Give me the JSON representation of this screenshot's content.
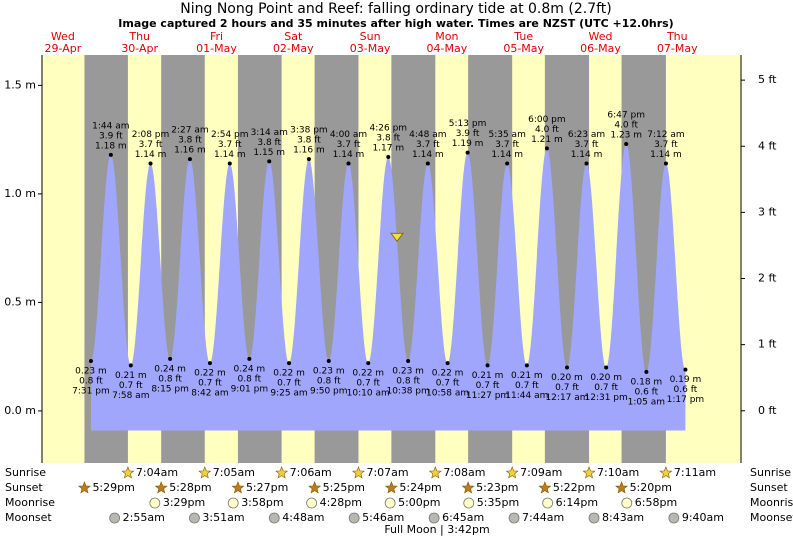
{
  "chart_data": {
    "type": "area",
    "title": "Ning Nong Point and Reef: falling  ordinary tide at 0.8m (2.7ft)",
    "subtitle": "Image captured 2 hours and 35 minutes after high water. Times are NZST (UTC +12.0hrs)",
    "current": 0.8,
    "ylim": [
      -0.24,
      1.64
    ],
    "yticks": [
      {
        "value": 0,
        "label": "0.0 m"
      },
      {
        "value": 0.5,
        "label": "0.5 m"
      },
      {
        "value": 1,
        "label": "1.0 m"
      },
      {
        "value": 1.5,
        "label": "1.5 m"
      }
    ],
    "y2lim": [
      -0.79,
      5.38
    ],
    "y2ticks": [
      {
        "value": 0,
        "label": "0 ft"
      },
      {
        "value": 1,
        "label": "1 ft"
      },
      {
        "value": 2,
        "label": "2 ft"
      },
      {
        "value": 3,
        "label": "3 ft"
      },
      {
        "value": 4,
        "label": "4 ft"
      },
      {
        "value": 5,
        "label": "5 ft"
      }
    ],
    "color": "#9fa6fb",
    "row_labels": {
      "sunrise": "Sunrise",
      "sunset": "Sunset",
      "moonrise": "Moonrise",
      "moonset": "Moonset"
    },
    "annotation": "Full Moon | 3:42pm",
    "days": [
      {
        "weekday": "Wed",
        "date": "29-Apr",
        "sunrise": null,
        "sunset": "5:29pm",
        "moonrise": null,
        "moonset": null,
        "tides": [
          {
            "time": "7:31 pm",
            "value": 0.23,
            "label": "0.23 m",
            "ft": "0.8 ft"
          }
        ]
      },
      {
        "weekday": "Thu",
        "date": "30-Apr",
        "sunrise": "7:04am",
        "sunset": "5:28pm",
        "moonrise": "3:29pm",
        "moonset": "2:55am",
        "tides": [
          {
            "time": "1:44 am",
            "value": 1.18,
            "label": "1.18 m",
            "ft": "3.9 ft"
          },
          {
            "time": "7:58 am",
            "value": 0.21,
            "label": "0.21 m",
            "ft": "0.7 ft"
          },
          {
            "time": "2:08 pm",
            "value": 1.14,
            "label": "1.14 m",
            "ft": "3.7 ft"
          },
          {
            "time": "8:15 pm",
            "value": 0.24,
            "label": "0.24 m",
            "ft": "0.8 ft"
          }
        ]
      },
      {
        "weekday": "Fri",
        "date": "01-May",
        "sunrise": "7:05am",
        "sunset": "5:27pm",
        "moonrise": "3:58pm",
        "moonset": "3:51am",
        "tides": [
          {
            "time": "2:27 am",
            "value": 1.16,
            "label": "1.16 m",
            "ft": "3.8 ft"
          },
          {
            "time": "8:42 am",
            "value": 0.22,
            "label": "0.22 m",
            "ft": "0.7 ft"
          },
          {
            "time": "2:54 pm",
            "value": 1.14,
            "label": "1.14 m",
            "ft": "3.7 ft"
          },
          {
            "time": "9:01 pm",
            "value": 0.24,
            "label": "0.24 m",
            "ft": "0.8 ft"
          }
        ]
      },
      {
        "weekday": "Sat",
        "date": "02-May",
        "sunrise": "7:06am",
        "sunset": "5:25pm",
        "moonrise": "4:28pm",
        "moonset": "4:48am",
        "tides": [
          {
            "time": "3:14 am",
            "value": 1.15,
            "label": "1.15 m",
            "ft": "3.8 ft"
          },
          {
            "time": "9:25 am",
            "value": 0.22,
            "label": "0.22 m",
            "ft": "0.7 ft"
          },
          {
            "time": "3:38 pm",
            "value": 1.16,
            "label": "1.16 m",
            "ft": "3.8 ft"
          },
          {
            "time": "9:50 pm",
            "value": 0.23,
            "label": "0.23 m",
            "ft": "0.8 ft"
          }
        ]
      },
      {
        "weekday": "Sun",
        "date": "03-May",
        "sunrise": "7:07am",
        "sunset": "5:24pm",
        "moonrise": "5:00pm",
        "moonset": "5:46am",
        "tides": [
          {
            "time": "4:00 am",
            "value": 1.14,
            "label": "1.14 m",
            "ft": "3.7 ft"
          },
          {
            "time": "10:10 am",
            "value": 0.22,
            "label": "0.22 m",
            "ft": "0.7 ft"
          },
          {
            "time": "4:26 pm",
            "value": 1.17,
            "label": "1.17 m",
            "ft": "3.8 ft"
          },
          {
            "time": "10:38 pm",
            "value": 0.23,
            "label": "0.23 m",
            "ft": "0.8 ft"
          }
        ]
      },
      {
        "weekday": "Mon",
        "date": "04-May",
        "sunrise": "7:08am",
        "sunset": "5:23pm",
        "moonrise": "5:35pm",
        "moonset": "6:45am",
        "tides": [
          {
            "time": "4:48 am",
            "value": 1.14,
            "label": "1.14 m",
            "ft": "3.7 ft"
          },
          {
            "time": "10:58 am",
            "value": 0.22,
            "label": "0.22 m",
            "ft": "0.7 ft"
          },
          {
            "time": "5:13 pm",
            "value": 1.19,
            "label": "1.19 m",
            "ft": "3.9 ft"
          },
          {
            "time": "11:27 pm",
            "value": 0.21,
            "label": "0.21 m",
            "ft": "0.7 ft"
          }
        ]
      },
      {
        "weekday": "Tue",
        "date": "05-May",
        "sunrise": "7:09am",
        "sunset": "5:22pm",
        "moonrise": "6:14pm",
        "moonset": "7:44am",
        "tides": [
          {
            "time": "5:35 am",
            "value": 1.14,
            "label": "1.14 m",
            "ft": "3.7 ft"
          },
          {
            "time": "11:44 am",
            "value": 0.21,
            "label": "0.21 m",
            "ft": "0.7 ft"
          },
          {
            "time": "6:00 pm",
            "value": 1.21,
            "label": "1.21 m",
            "ft": "4.0 ft"
          }
        ]
      },
      {
        "weekday": "Wed",
        "date": "06-May",
        "sunrise": "7:10am",
        "sunset": "5:20pm",
        "moonrise": "6:58pm",
        "moonset": "8:43am",
        "tides": [
          {
            "time": "12:17 am",
            "value": 0.2,
            "label": "0.20 m",
            "ft": "0.7 ft"
          },
          {
            "time": "6:23 am",
            "value": 1.14,
            "label": "1.14 m",
            "ft": "3.7 ft"
          },
          {
            "time": "12:31 pm",
            "value": 0.2,
            "label": "0.20 m",
            "ft": "0.7 ft"
          },
          {
            "time": "6:47 pm",
            "value": 1.23,
            "label": "1.23 m",
            "ft": "4.0 ft"
          }
        ]
      },
      {
        "weekday": "Thu",
        "date": "07-May",
        "sunrise": "7:11am",
        "sunset": null,
        "moonrise": null,
        "moonset": "9:40am",
        "tides": [
          {
            "time": "1:05 am",
            "value": 0.18,
            "label": "0.18 m",
            "ft": "0.6 ft"
          },
          {
            "time": "7:12 am",
            "value": 1.14,
            "label": "1.14 m",
            "ft": "3.7 ft"
          },
          {
            "time": "1:17 pm",
            "value": 0.19,
            "label": "0.19 m",
            "ft": "0.6 ft"
          }
        ]
      }
    ]
  }
}
